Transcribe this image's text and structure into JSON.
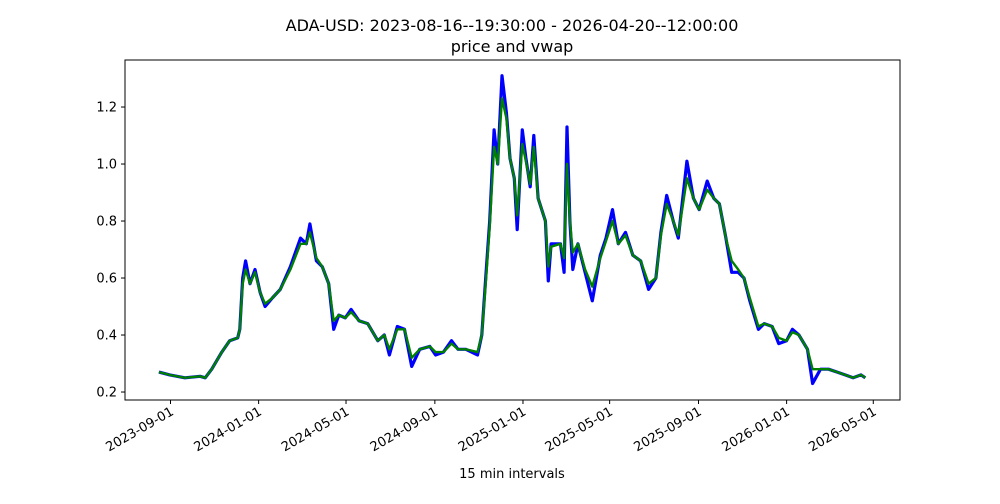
{
  "chart_data": {
    "type": "line",
    "title": "ADA-USD: 2023-08-16--19:30:00 - 2026-04-20--12:00:00",
    "subtitle": "price and vwap",
    "xlabel": "15 min intervals",
    "ylabel": "",
    "xlim": [
      "2023-06-30",
      "2026-06-07"
    ],
    "ylim": [
      0.172,
      1.365
    ],
    "grid": false,
    "yticks": [
      0.2,
      0.4,
      0.6,
      0.8,
      1.0,
      1.2
    ],
    "ytick_labels": [
      "0.2",
      "0.4",
      "0.6",
      "0.8",
      "1.0",
      "1.2"
    ],
    "xticks": [
      "2023-09-01",
      "2024-01-01",
      "2024-05-01",
      "2024-09-01",
      "2025-01-01",
      "2025-05-01",
      "2025-09-01",
      "2026-01-01",
      "2026-05-01"
    ],
    "colors": {
      "price": "#0000ff",
      "vwap": "#008000"
    },
    "x": [
      "2023-08-16",
      "2023-08-31",
      "2023-09-21",
      "2023-10-12",
      "2023-10-19",
      "2023-10-28",
      "2023-11-11",
      "2023-11-22",
      "2023-12-03",
      "2023-12-06",
      "2023-12-10",
      "2023-12-14",
      "2023-12-20",
      "2023-12-27",
      "2024-01-03",
      "2024-01-10",
      "2024-01-20",
      "2024-01-31",
      "2024-02-14",
      "2024-02-28",
      "2024-03-07",
      "2024-03-12",
      "2024-03-21",
      "2024-03-29",
      "2024-04-07",
      "2024-04-14",
      "2024-04-21",
      "2024-04-30",
      "2024-05-08",
      "2024-05-19",
      "2024-05-31",
      "2024-06-14",
      "2024-06-23",
      "2024-06-30",
      "2024-07-11",
      "2024-07-21",
      "2024-07-31",
      "2024-08-11",
      "2024-08-25",
      "2024-09-02",
      "2024-09-13",
      "2024-09-24",
      "2024-10-03",
      "2024-10-14",
      "2024-10-30",
      "2024-11-05",
      "2024-11-11",
      "2024-11-16",
      "2024-11-22",
      "2024-11-27",
      "2024-12-03",
      "2024-12-09",
      "2024-12-14",
      "2024-12-20",
      "2024-12-24",
      "2024-12-31",
      "2025-01-05",
      "2025-01-11",
      "2025-01-16",
      "2025-01-22",
      "2025-02-01",
      "2025-02-05",
      "2025-02-09",
      "2025-02-22",
      "2025-02-27",
      "2025-03-03",
      "2025-03-07",
      "2025-03-11",
      "2025-03-18",
      "2025-03-28",
      "2025-04-07",
      "2025-04-18",
      "2025-04-26",
      "2025-05-05",
      "2025-05-13",
      "2025-05-23",
      "2025-06-02",
      "2025-06-13",
      "2025-06-24",
      "2025-07-04",
      "2025-07-11",
      "2025-07-19",
      "2025-07-28",
      "2025-08-04",
      "2025-08-16",
      "2025-08-25",
      "2025-09-02",
      "2025-09-13",
      "2025-09-22",
      "2025-09-30",
      "2025-10-09",
      "2025-10-17",
      "2025-10-26",
      "2025-11-03",
      "2025-11-11",
      "2025-11-23",
      "2025-12-01",
      "2025-12-12",
      "2025-12-21",
      "2026-01-01",
      "2026-01-09",
      "2026-01-18",
      "2026-01-30",
      "2026-02-06",
      "2026-02-17",
      "2026-02-28",
      "2026-03-12",
      "2026-03-23",
      "2026-04-03",
      "2026-04-14",
      "2026-04-20"
    ],
    "series": [
      {
        "name": "price",
        "values": [
          0.27,
          0.26,
          0.25,
          0.255,
          0.25,
          0.28,
          0.34,
          0.38,
          0.39,
          0.42,
          0.6,
          0.66,
          0.58,
          0.63,
          0.55,
          0.5,
          0.53,
          0.56,
          0.64,
          0.74,
          0.72,
          0.79,
          0.66,
          0.64,
          0.58,
          0.42,
          0.47,
          0.46,
          0.49,
          0.45,
          0.44,
          0.38,
          0.4,
          0.33,
          0.43,
          0.42,
          0.29,
          0.35,
          0.36,
          0.33,
          0.34,
          0.38,
          0.35,
          0.35,
          0.33,
          0.4,
          0.62,
          0.8,
          1.12,
          1.0,
          1.31,
          1.18,
          1.02,
          0.95,
          0.77,
          1.12,
          1.02,
          0.92,
          1.1,
          0.88,
          0.8,
          0.59,
          0.72,
          0.72,
          0.62,
          1.13,
          0.8,
          0.63,
          0.72,
          0.62,
          0.52,
          0.68,
          0.74,
          0.84,
          0.72,
          0.76,
          0.68,
          0.66,
          0.56,
          0.6,
          0.76,
          0.89,
          0.8,
          0.74,
          1.01,
          0.88,
          0.84,
          0.94,
          0.88,
          0.86,
          0.74,
          0.62,
          0.62,
          0.6,
          0.52,
          0.42,
          0.44,
          0.43,
          0.37,
          0.38,
          0.42,
          0.4,
          0.35,
          0.23,
          0.28,
          0.28,
          0.27,
          0.26,
          0.25,
          0.26,
          0.25
        ]
      },
      {
        "name": "vwap",
        "values": [
          0.27,
          0.26,
          0.25,
          0.255,
          0.25,
          0.28,
          0.34,
          0.38,
          0.39,
          0.42,
          0.58,
          0.63,
          0.58,
          0.62,
          0.55,
          0.51,
          0.53,
          0.56,
          0.63,
          0.72,
          0.72,
          0.76,
          0.67,
          0.64,
          0.58,
          0.45,
          0.47,
          0.46,
          0.48,
          0.45,
          0.44,
          0.38,
          0.4,
          0.35,
          0.42,
          0.42,
          0.32,
          0.35,
          0.36,
          0.34,
          0.34,
          0.37,
          0.35,
          0.35,
          0.34,
          0.4,
          0.6,
          0.78,
          1.06,
          1.0,
          1.23,
          1.16,
          1.02,
          0.95,
          0.82,
          1.07,
          1.01,
          0.93,
          1.06,
          0.88,
          0.8,
          0.64,
          0.71,
          0.72,
          0.67,
          1.0,
          0.8,
          0.69,
          0.72,
          0.63,
          0.57,
          0.67,
          0.73,
          0.8,
          0.72,
          0.75,
          0.68,
          0.66,
          0.58,
          0.6,
          0.75,
          0.86,
          0.8,
          0.75,
          0.95,
          0.88,
          0.84,
          0.91,
          0.88,
          0.86,
          0.74,
          0.66,
          0.63,
          0.6,
          0.53,
          0.43,
          0.44,
          0.43,
          0.39,
          0.38,
          0.41,
          0.4,
          0.35,
          0.28,
          0.28,
          0.28,
          0.27,
          0.26,
          0.25,
          0.26,
          0.25
        ]
      }
    ]
  }
}
